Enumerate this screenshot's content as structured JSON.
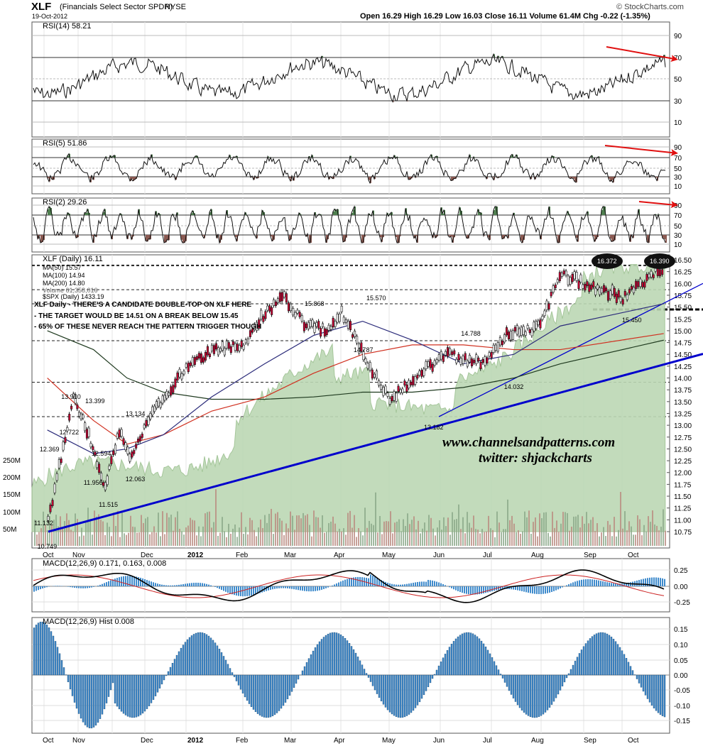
{
  "header": {
    "ticker": "XLF",
    "name": "(Financials Select Sector SPDR)",
    "exchange": "NYSE",
    "date": "19-Oct-2012",
    "quote": "Open 16.29  High 16.29  Low 16.03  Close 16.11  Volume 61.4M  Chg -0.22 (-1.35%)",
    "credit": "© StockCharts.com"
  },
  "colors": {
    "accent_up": "#4f7f4f",
    "accent_down": "#8b5a52",
    "bear_candle": "#cc0033",
    "ma50": "#2b2b7a",
    "ma100": "#d03020",
    "ma200": "#1f3a1f",
    "macd_line": "#000000",
    "signal": "#cc2222",
    "trend_line": "#0000cc",
    "arrow": "#e01010",
    "spx_area": "#bcd8b4",
    "histogram": "#3f8bcc"
  },
  "panels": {
    "rsi14": {
      "label": "RSI(14) 58.21",
      "ticks": [
        "90",
        "70",
        "50",
        "30",
        "10"
      ]
    },
    "rsi5": {
      "label": "RSI(5) 51.86",
      "ticks": [
        "90",
        "70",
        "50",
        "30",
        "10"
      ]
    },
    "rsi2": {
      "label": "RSI(2) 29.26",
      "ticks": [
        "90",
        "70",
        "50",
        "30",
        "10"
      ]
    },
    "macd": {
      "label": "MACD(12,26,9) 0.171, 0.163, 0.008",
      "ticks": [
        "0.25",
        "0.00",
        "-0.25"
      ]
    },
    "hist": {
      "label": "MACD(12,26,9) Hist 0.008",
      "ticks": [
        "0.15",
        "0.10",
        "0.05",
        "0.00",
        "-0.05",
        "-0.10",
        "-0.15"
      ]
    }
  },
  "legend": [
    "XLF (Daily) 16.11",
    "MA(50) 15.57",
    "MA(100) 14.94",
    "MA(200) 14.80",
    "Volume 61,358,016",
    "$SPX (Daily) 1433.19"
  ],
  "notes": [
    "XLF Daily - THERE'S A CANDIDATE DOUBLE-TOP ON XLF HERE",
    "- THE TARGET WOULD BE 14.51 ON A BREAK BELOW 15.45",
    "- 65% OF THESE NEVER REACH THE PATTERN TRIGGER THOUGH"
  ],
  "watermark": [
    "www.channelsandpatterns.com",
    "twitter: shjackcharts"
  ],
  "x_months": [
    "Oct",
    "Nov",
    "Dec",
    "2012",
    "Feb",
    "Mar",
    "Apr",
    "May",
    "Jun",
    "Jul",
    "Aug",
    "Sep",
    "Oct"
  ],
  "chart_data": {
    "type": "line",
    "title": "XLF (Financials Select Sector SPDR) NYSE",
    "price_axis": [
      "16.50",
      "16.25",
      "16.00",
      "15.75",
      "15.50",
      "15.25",
      "15.00",
      "14.75",
      "14.50",
      "14.25",
      "14.00",
      "13.75",
      "13.50",
      "13.25",
      "13.00",
      "12.75",
      "12.50",
      "12.25",
      "12.00",
      "11.75",
      "11.50",
      "11.25",
      "11.00",
      "10.75"
    ],
    "volume_axis": [
      "250M",
      "200M",
      "150M",
      "100M",
      "50M"
    ],
    "ylim": [
      10.7,
      16.6
    ],
    "price_labels": [
      {
        "x": "Oct-04",
        "y": 10.749,
        "text": "10.749"
      },
      {
        "x": "Oct-03",
        "y": 11.132,
        "text": "11.132"
      },
      {
        "x": "Oct-10",
        "y": 12.369,
        "text": "12.369"
      },
      {
        "x": "Oct-24",
        "y": 12.722,
        "text": "12.722"
      },
      {
        "x": "Oct-28",
        "y": 11.956,
        "text": "11.956"
      },
      {
        "x": "Oct-27",
        "y": 13.91,
        "text": "13.910"
      },
      {
        "x": "Nov-01",
        "y": 13.399,
        "text": "13.399"
      },
      {
        "x": "Nov-08",
        "y": 12.594,
        "text": "12.594"
      },
      {
        "x": "Nov-25",
        "y": 11.515,
        "text": "11.515"
      },
      {
        "x": "Dec-07",
        "y": 13.134,
        "text": "13.134"
      },
      {
        "x": "Dec-19",
        "y": 12.063,
        "text": "12.063"
      },
      {
        "x": "Mar-27",
        "y": 15.868,
        "text": "15.868"
      },
      {
        "x": "May-01",
        "y": 15.57,
        "text": "15.570"
      },
      {
        "x": "Apr-24",
        "y": 14.787,
        "text": "14.787"
      },
      {
        "x": "Jun-04",
        "y": 13.182,
        "text": "13.182"
      },
      {
        "x": "Jul-05",
        "y": 14.788,
        "text": "14.788"
      },
      {
        "x": "Jul-25",
        "y": 14.032,
        "text": "14.032"
      },
      {
        "x": "Sep-14",
        "y": 16.372,
        "text": "16.372"
      },
      {
        "x": "Oct-01",
        "y": 15.45,
        "text": "15.450"
      },
      {
        "x": "Oct-17",
        "y": 16.39,
        "text": "16.390"
      }
    ],
    "series": [
      {
        "name": "XLF (Daily)",
        "points": [
          [
            "Oct-04",
            11.0
          ],
          [
            "Oct-14",
            12.1
          ],
          [
            "Oct-27",
            13.6
          ],
          [
            "Nov-03",
            13.2
          ],
          [
            "Nov-10",
            12.8
          ],
          [
            "Nov-25",
            11.7
          ],
          [
            "Dec-07",
            12.9
          ],
          [
            "Dec-19",
            12.3
          ],
          [
            "Jan-03",
            13.1
          ],
          [
            "Jan-20",
            13.8
          ],
          [
            "Feb-03",
            14.3
          ],
          [
            "Feb-17",
            14.6
          ],
          [
            "Mar-01",
            14.7
          ],
          [
            "Mar-15",
            15.4
          ],
          [
            "Mar-27",
            15.7
          ],
          [
            "Apr-10",
            15.1
          ],
          [
            "Apr-24",
            15.0
          ],
          [
            "May-01",
            15.4
          ],
          [
            "May-15",
            14.5
          ],
          [
            "Jun-01",
            13.5
          ],
          [
            "Jun-15",
            14.0
          ],
          [
            "Jul-05",
            14.5
          ],
          [
            "Jul-25",
            14.3
          ],
          [
            "Aug-10",
            14.9
          ],
          [
            "Aug-31",
            15.1
          ],
          [
            "Sep-14",
            16.2
          ],
          [
            "Oct-01",
            15.7
          ],
          [
            "Oct-17",
            16.3
          ],
          [
            "Oct-19",
            16.11
          ]
        ]
      },
      {
        "name": "MA(50)",
        "points": [
          [
            "Oct-04",
            12.9
          ],
          [
            "Nov-15",
            12.4
          ],
          [
            "Dec-15",
            12.5
          ],
          [
            "Jan-15",
            12.8
          ],
          [
            "Feb-15",
            13.6
          ],
          [
            "Mar-15",
            14.3
          ],
          [
            "Apr-15",
            14.9
          ],
          [
            "May-15",
            15.2
          ],
          [
            "Jun-15",
            14.8
          ],
          [
            "Jul-15",
            14.3
          ],
          [
            "Aug-15",
            14.5
          ],
          [
            "Sep-15",
            15.1
          ],
          [
            "Oct-19",
            15.57
          ]
        ]
      },
      {
        "name": "MA(100)",
        "points": [
          [
            "Oct-04",
            14.0
          ],
          [
            "Nov-15",
            13.1
          ],
          [
            "Dec-15",
            12.6
          ],
          [
            "Jan-15",
            12.8
          ],
          [
            "Feb-15",
            13.3
          ],
          [
            "Mar-15",
            13.6
          ],
          [
            "Apr-15",
            14.1
          ],
          [
            "May-15",
            14.5
          ],
          [
            "Jun-15",
            14.7
          ],
          [
            "Jul-15",
            14.7
          ],
          [
            "Aug-15",
            14.6
          ],
          [
            "Sep-15",
            14.6
          ],
          [
            "Oct-19",
            14.94
          ]
        ]
      },
      {
        "name": "MA(200)",
        "points": [
          [
            "Oct-04",
            15.0
          ],
          [
            "Nov-15",
            14.6
          ],
          [
            "Dec-15",
            14.0
          ],
          [
            "Jan-15",
            13.7
          ],
          [
            "Feb-15",
            13.55
          ],
          [
            "Mar-15",
            13.55
          ],
          [
            "Apr-15",
            13.6
          ],
          [
            "May-15",
            13.7
          ],
          [
            "Jun-15",
            13.7
          ],
          [
            "Jul-15",
            13.8
          ],
          [
            "Aug-15",
            14.0
          ],
          [
            "Sep-15",
            14.3
          ],
          [
            "Oct-19",
            14.8
          ]
        ]
      }
    ],
    "grid": true,
    "legend_position": "top-left"
  }
}
